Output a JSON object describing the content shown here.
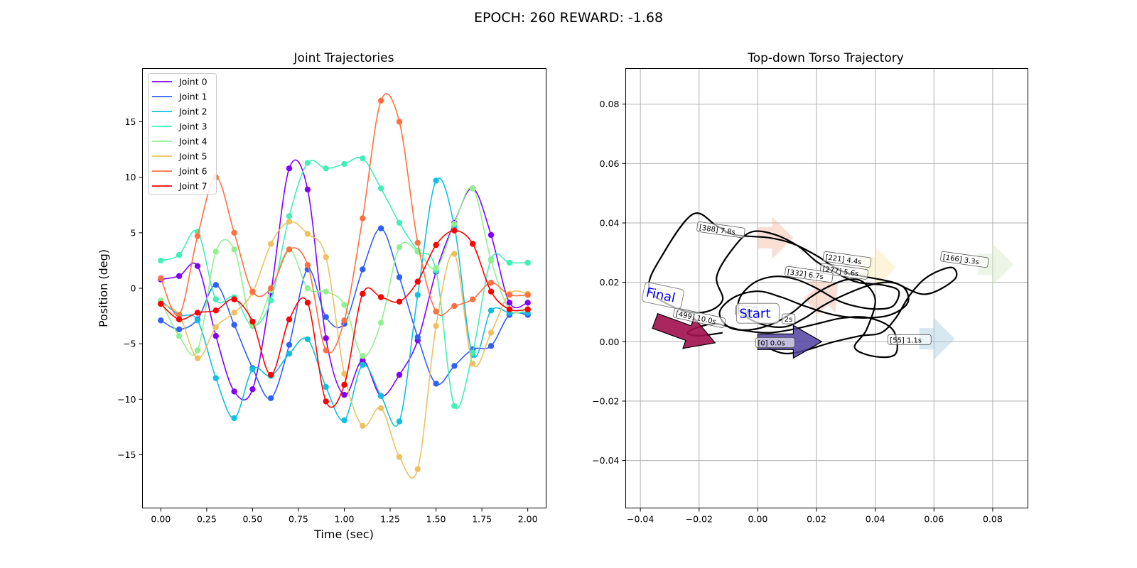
{
  "figure": {
    "suptitle": "EPOCH: 260 REWARD:  -1.68"
  },
  "colors": {
    "joints": [
      "#8000ff",
      "#3060f8",
      "#10c0e0",
      "#40f0b8",
      "#90f090",
      "#eec060",
      "#ff7040",
      "#ff0000"
    ],
    "heading": [
      "#f4b8a0",
      "#f8e8b0",
      "#d8ecc8",
      "#a8cce0"
    ],
    "start_arrow": "#5040a0",
    "final_arrow": "#a0104c"
  },
  "chart_data": [
    {
      "type": "line",
      "title": "Joint Trajectories",
      "xlabel": "Time (sec)",
      "ylabel": "Position (deg)",
      "xlim": [
        -0.1,
        2.1
      ],
      "ylim": [
        -19.8,
        19.8
      ],
      "xticks": [
        0.0,
        0.25,
        0.5,
        0.75,
        1.0,
        1.25,
        1.5,
        1.75,
        2.0
      ],
      "xtick_labels": [
        "0.00",
        "0.25",
        "0.50",
        "0.75",
        "1.00",
        "1.25",
        "1.50",
        "1.75",
        "2.00"
      ],
      "yticks": [
        -15,
        -10,
        -5,
        0,
        5,
        10,
        15
      ],
      "ytick_labels": [
        "−15",
        "−10",
        "−5",
        "0",
        "5",
        "10",
        "15"
      ],
      "legend": "top-left",
      "grid": false,
      "x": [
        0.0,
        0.1,
        0.2,
        0.3,
        0.4,
        0.5,
        0.6,
        0.7,
        0.8,
        0.9,
        1.0,
        1.1,
        1.2,
        1.3,
        1.4,
        1.5,
        1.6,
        1.7,
        1.8,
        1.9,
        2.0
      ],
      "series": [
        {
          "name": "Joint 0",
          "values": [
            0.8,
            1.1,
            2.0,
            -4.3,
            -9.3,
            -9.1,
            -0.4,
            10.8,
            8.9,
            -4.5,
            -9.6,
            -6.5,
            -9.7,
            -7.8,
            -4.7,
            1.5,
            5.9,
            9.0,
            4.8,
            -1.3,
            -1.3
          ]
        },
        {
          "name": "Joint 1",
          "values": [
            -2.9,
            -3.7,
            -2.8,
            0.3,
            -3.3,
            -7.2,
            -9.9,
            -5.1,
            1.7,
            -2.6,
            -3.2,
            1.7,
            5.4,
            1.0,
            -4.4,
            -8.6,
            -7.0,
            -5.5,
            -5.2,
            -2.4,
            -2.4
          ]
        },
        {
          "name": "Joint 2",
          "values": [
            -1.1,
            -2.4,
            -2.9,
            -8.1,
            -11.7,
            -7.3,
            -7.9,
            -5.9,
            -4.6,
            -8.9,
            -11.9,
            -6.9,
            -9.7,
            -12.0,
            -0.6,
            9.7,
            5.6,
            -6.0,
            -2.0,
            -2.2,
            -2.2
          ]
        },
        {
          "name": "Joint 3",
          "values": [
            2.5,
            3.0,
            5.1,
            -1.0,
            -0.8,
            -3.4,
            -1.1,
            6.5,
            11.3,
            10.8,
            11.2,
            11.7,
            9.0,
            5.9,
            3.4,
            1.6,
            -10.6,
            -5.8,
            2.6,
            2.3,
            2.3
          ]
        },
        {
          "name": "Joint 4",
          "values": [
            -1.1,
            -4.3,
            -5.6,
            3.3,
            3.5,
            -3.3,
            -0.2,
            3.5,
            0.0,
            -0.3,
            -1.5,
            -6.1,
            -3.1,
            3.7,
            3.3,
            1.8,
            5.8,
            9.0,
            2.5,
            -1.9,
            -1.9
          ]
        },
        {
          "name": "Joint 5",
          "values": [
            -1.4,
            -2.4,
            -6.3,
            -3.5,
            -2.2,
            -0.4,
            4.0,
            6.0,
            4.9,
            2.8,
            -7.7,
            -12.4,
            -10.8,
            -15.2,
            -16.3,
            -3.4,
            3.1,
            -6.8,
            -4.0,
            -0.5,
            -0.5
          ]
        },
        {
          "name": "Joint 6",
          "values": [
            0.9,
            -2.4,
            4.7,
            10.0,
            5.0,
            -0.3,
            0.0,
            3.5,
            2.1,
            -5.6,
            -2.9,
            6.3,
            16.9,
            15.0,
            4.1,
            -2.1,
            -1.6,
            -1.0,
            0.5,
            -0.6,
            -0.6
          ]
        },
        {
          "name": "Joint 7",
          "values": [
            -1.4,
            -2.8,
            -2.2,
            -2.0,
            -1.0,
            -3.0,
            -7.8,
            -2.8,
            -1.3,
            -10.2,
            -8.7,
            -0.5,
            -0.8,
            -1.2,
            0.6,
            3.9,
            5.2,
            4.0,
            -0.3,
            -1.9,
            -1.9
          ]
        }
      ]
    },
    {
      "type": "line",
      "title": "Top-down Torso Trajectory",
      "xlim": [
        -0.045,
        0.092
      ],
      "ylim": [
        -0.056,
        0.092
      ],
      "xticks": [
        -0.04,
        -0.02,
        0.0,
        0.02,
        0.04,
        0.06,
        0.08
      ],
      "xtick_labels": [
        "−0.04",
        "−0.02",
        "0.00",
        "0.02",
        "0.04",
        "0.06",
        "0.08"
      ],
      "yticks": [
        -0.04,
        -0.02,
        0.0,
        0.02,
        0.04,
        0.06,
        0.08
      ],
      "ytick_labels": [
        "−0.04",
        "−0.02",
        "0.00",
        "0.02",
        "0.04",
        "0.06",
        "0.08"
      ],
      "grid": true,
      "path": [
        [
          0.0,
          0.0
        ],
        [
          0.01,
          -0.004
        ],
        [
          0.026,
          0.0
        ],
        [
          0.035,
          0.002
        ],
        [
          0.042,
          0.003
        ],
        [
          0.047,
          0.008
        ],
        [
          0.052,
          0.016
        ],
        [
          0.058,
          0.022
        ],
        [
          0.066,
          0.025
        ],
        [
          0.067,
          0.021
        ],
        [
          0.057,
          0.016
        ],
        [
          0.046,
          0.02
        ],
        [
          0.036,
          0.022
        ],
        [
          0.028,
          0.024
        ],
        [
          0.02,
          0.029
        ],
        [
          0.012,
          0.033
        ],
        [
          0.004,
          0.035
        ],
        [
          -0.008,
          0.036
        ],
        [
          -0.014,
          0.039
        ],
        [
          -0.022,
          0.043
        ],
        [
          -0.032,
          0.03
        ],
        [
          -0.037,
          0.018
        ],
        [
          -0.027,
          0.011
        ],
        [
          -0.018,
          0.01
        ],
        [
          -0.012,
          0.014
        ],
        [
          -0.014,
          0.022
        ],
        [
          -0.008,
          0.032
        ],
        [
          -0.002,
          0.037
        ],
        [
          0.006,
          0.036
        ],
        [
          0.014,
          0.032
        ],
        [
          0.02,
          0.027
        ],
        [
          0.027,
          0.023
        ],
        [
          0.034,
          0.02
        ],
        [
          0.043,
          0.019
        ],
        [
          0.048,
          0.017
        ],
        [
          0.046,
          0.012
        ],
        [
          0.04,
          0.011
        ],
        [
          0.033,
          0.012
        ],
        [
          0.027,
          0.014
        ],
        [
          0.02,
          0.018
        ],
        [
          0.013,
          0.021
        ],
        [
          0.006,
          0.022
        ],
        [
          -0.001,
          0.02
        ],
        [
          -0.006,
          0.015
        ],
        [
          -0.006,
          0.01
        ],
        [
          0.001,
          0.006
        ],
        [
          0.009,
          0.005
        ],
        [
          0.016,
          0.008
        ],
        [
          0.022,
          0.012
        ],
        [
          0.03,
          0.016
        ],
        [
          0.038,
          0.019
        ],
        [
          0.045,
          0.02
        ],
        [
          0.05,
          0.018
        ],
        [
          0.051,
          0.013
        ],
        [
          0.045,
          0.009
        ],
        [
          0.036,
          0.008
        ],
        [
          0.026,
          0.009
        ],
        [
          0.016,
          0.012
        ],
        [
          0.008,
          0.015
        ],
        [
          0.0,
          0.017
        ],
        [
          -0.008,
          0.015
        ],
        [
          -0.013,
          0.01
        ],
        [
          -0.01,
          0.005
        ],
        [
          -0.003,
          0.004
        ],
        [
          0.005,
          0.006
        ],
        [
          0.012,
          0.01
        ],
        [
          0.018,
          0.015
        ],
        [
          0.025,
          0.019
        ],
        [
          0.031,
          0.021
        ],
        [
          0.036,
          0.02
        ],
        [
          0.04,
          0.014
        ],
        [
          0.037,
          0.004
        ],
        [
          0.033,
          -0.002
        ],
        [
          0.04,
          -0.005
        ],
        [
          0.047,
          -0.004
        ],
        [
          0.046,
          0.004
        ],
        [
          0.038,
          0.008
        ],
        [
          0.029,
          0.008
        ],
        [
          0.02,
          0.006
        ],
        [
          0.011,
          0.004
        ],
        [
          0.003,
          0.003
        ],
        [
          -0.006,
          0.004
        ],
        [
          -0.014,
          0.006
        ],
        [
          -0.02,
          0.005
        ],
        [
          -0.024,
          0.003
        ],
        [
          -0.02,
          0.002
        ],
        [
          -0.012,
          0.003
        ]
      ],
      "heading_arrows": [
        {
          "x": 0.0,
          "y": 0.035,
          "angle": 0
        },
        {
          "x": 0.035,
          "y": 0.025,
          "angle": 0
        },
        {
          "x": 0.075,
          "y": 0.026,
          "angle": 0
        },
        {
          "x": 0.055,
          "y": 0.001,
          "angle": 0
        },
        {
          "x": 0.018,
          "y": 0.012,
          "angle": 40
        }
      ],
      "start_arrow": {
        "x": 0.0,
        "y": 0.0
      },
      "final_arrow": {
        "x": -0.035,
        "y": 0.007,
        "angle": -20
      },
      "time_labels": [
        {
          "text": "[388] 7.8s",
          "x": -0.02,
          "y": 0.038,
          "angle": -8
        },
        {
          "text": "[221] 4.4s",
          "x": 0.023,
          "y": 0.028,
          "angle": -8
        },
        {
          "text": "[277] 5.6s",
          "x": 0.022,
          "y": 0.024,
          "angle": -8
        },
        {
          "text": "[332] 6.7s",
          "x": 0.01,
          "y": 0.023,
          "angle": -8
        },
        {
          "text": "[166] 3.3s",
          "x": 0.063,
          "y": 0.028,
          "angle": -8
        },
        {
          "text": "[499] 10.0s",
          "x": -0.028,
          "y": 0.009,
          "angle": -12
        },
        {
          "text": "[44]",
          "x": -0.007,
          "y": 0.01,
          "angle": -8
        },
        {
          "text": "2s",
          "x": 0.009,
          "y": 0.007,
          "angle": 0
        },
        {
          "text": "[55] 1.1s",
          "x": 0.045,
          "y": 0.0,
          "angle": 0
        },
        {
          "text": "[0] 0.0s",
          "x": 0.0,
          "y": -0.001,
          "angle": 0
        }
      ],
      "start_label": "Start",
      "final_label": "Final"
    }
  ]
}
